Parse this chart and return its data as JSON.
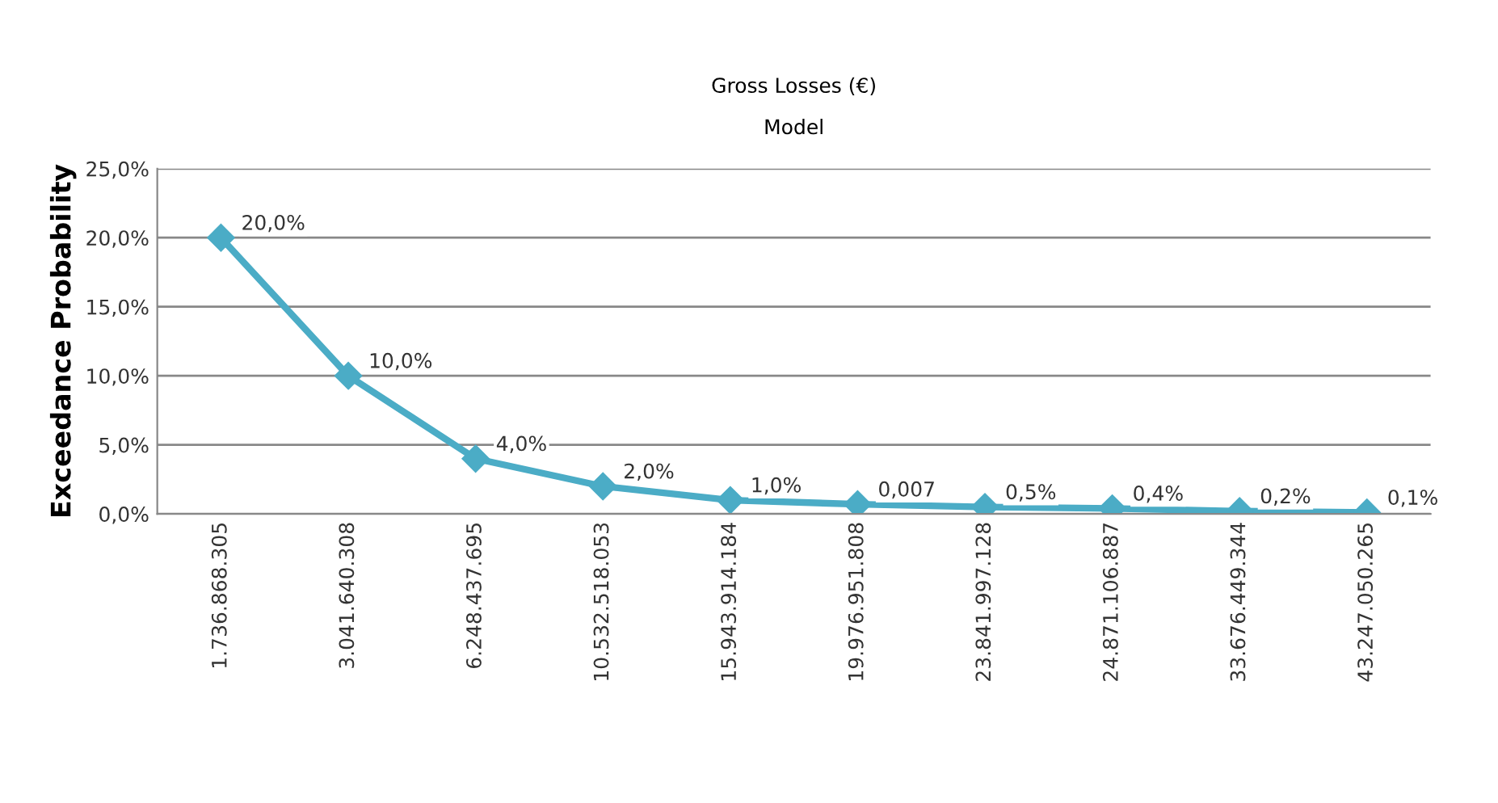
{
  "chart_data": {
    "type": "line",
    "title": "Gross Losses (€)",
    "subtitle": "Model",
    "ylabel": "Exceedance Probability",
    "categories": [
      "1.736.868.305",
      "3.041.640.308",
      "6.248.437.695",
      "10.532.518.053",
      "15.943.914.184",
      "19.976.951.808",
      "23.841.997.128",
      "24.871.106.887",
      "33.676.449.344",
      "43.247.050.265"
    ],
    "series": [
      {
        "color": "#4bacc6",
        "values": [
          0.2,
          0.1,
          0.04,
          0.02,
          0.01,
          0.007,
          0.005,
          0.004,
          0.002,
          0.001
        ],
        "value_labels": [
          "20,0%",
          "10,0%",
          "4,0%",
          "2,0%",
          "1,0%",
          "0,007",
          "0,5%",
          "0,4%",
          "0,2%",
          "0,1%"
        ]
      }
    ],
    "ylim": [
      0,
      0.25
    ],
    "yticks": [
      {
        "value": 0,
        "label": "0,0%"
      },
      {
        "value": 0.05,
        "label": "5,0%"
      },
      {
        "value": 0.1,
        "label": "10,0%"
      },
      {
        "value": 0.15,
        "label": "15,0%"
      },
      {
        "value": 0.2,
        "label": "20,0%"
      },
      {
        "value": 0.25,
        "label": "25,0%"
      }
    ],
    "grid": "y",
    "marker": "diamond",
    "line_style": "solid",
    "legend": false
  }
}
